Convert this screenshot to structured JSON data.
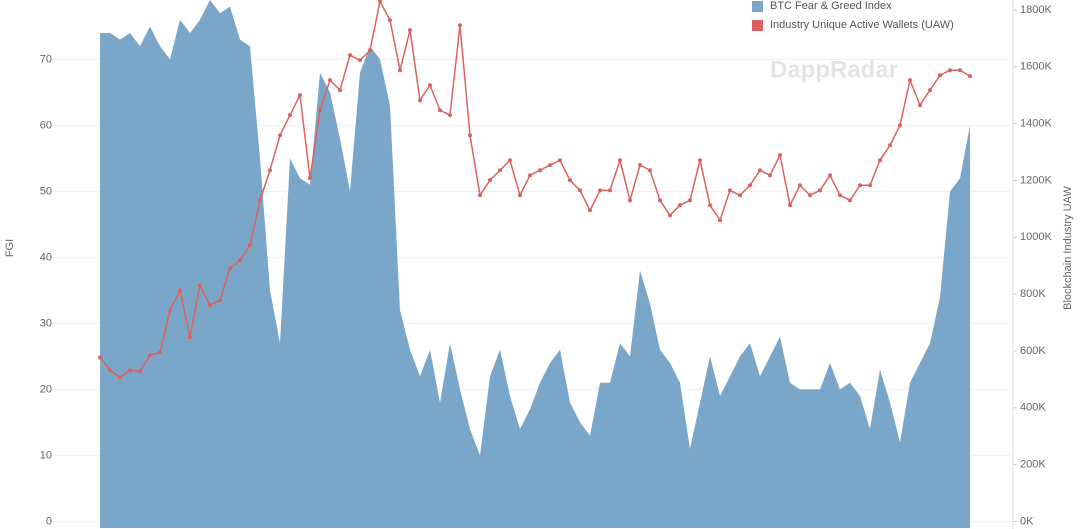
{
  "chart_data": {
    "type": "area-line",
    "watermark": "DappRadar",
    "y_label": "FGI",
    "y2_label": "Blockchain Industry UAW",
    "ylim": [
      -1,
      79
    ],
    "yticks": [
      0,
      10,
      20,
      30,
      40,
      50,
      60,
      70
    ],
    "y2lim": [
      -23000,
      1835000
    ],
    "y2ticks": [
      {
        "value": 0,
        "label": "0K"
      },
      {
        "value": 200000,
        "label": "200K"
      },
      {
        "value": 400000,
        "label": "400K"
      },
      {
        "value": 600000,
        "label": "600K"
      },
      {
        "value": 800000,
        "label": "800K"
      },
      {
        "value": 1000000,
        "label": "1000K"
      },
      {
        "value": 1200000,
        "label": "1200K"
      },
      {
        "value": 1400000,
        "label": "1400K"
      },
      {
        "value": 1600000,
        "label": "1600K"
      },
      {
        "value": 1800000,
        "label": "1800K"
      }
    ],
    "grid": true,
    "legend": "top-right",
    "series": [
      {
        "name": "BTC Fear & Greed Index",
        "color": "#7aa6c9",
        "kind": "area",
        "values": [
          74,
          74,
          73,
          74,
          72,
          75,
          72,
          70,
          76,
          74,
          76,
          79,
          77,
          78,
          73,
          72,
          55,
          35,
          27,
          55,
          52,
          51,
          68,
          65,
          58,
          50,
          68,
          72,
          70,
          63,
          32,
          26,
          22,
          26,
          18,
          27,
          20,
          14,
          10,
          22,
          26,
          19,
          14,
          17,
          21,
          24,
          26,
          18,
          15,
          13,
          21,
          21,
          27,
          25,
          38,
          33,
          26,
          24,
          21,
          11,
          18,
          25,
          19,
          22,
          25,
          27,
          22,
          25,
          28,
          21,
          20,
          20,
          20,
          24,
          20,
          21,
          19,
          14,
          23,
          18,
          12,
          21,
          24,
          27,
          34,
          50,
          52,
          60
        ]
      },
      {
        "name": "Industry Unique Active Wallets (UAW)",
        "color": "#d9645f",
        "kind": "line",
        "axis": "y2",
        "values": [
          577000,
          532000,
          507000,
          532000,
          528000,
          585000,
          595000,
          743000,
          813000,
          648000,
          831000,
          761000,
          778000,
          891000,
          919000,
          972000,
          1130000,
          1236000,
          1359000,
          1430000,
          1500000,
          1208000,
          1447000,
          1553000,
          1518000,
          1641000,
          1623000,
          1658000,
          1830000,
          1764000,
          1588000,
          1729000,
          1482000,
          1535000,
          1447000,
          1430000,
          1746000,
          1359000,
          1148000,
          1201000,
          1236000,
          1271000,
          1148000,
          1218000,
          1236000,
          1254000,
          1271000,
          1201000,
          1165000,
          1095000,
          1165000,
          1165000,
          1271000,
          1130000,
          1254000,
          1236000,
          1130000,
          1077000,
          1113000,
          1130000,
          1271000,
          1113000,
          1060000,
          1165000,
          1148000,
          1183000,
          1236000,
          1218000,
          1289000,
          1113000,
          1183000,
          1148000,
          1165000,
          1218000,
          1148000,
          1130000,
          1183000,
          1183000,
          1271000,
          1324000,
          1394000,
          1553000,
          1465000,
          1518000,
          1570000,
          1588000,
          1588000,
          1567000
        ]
      }
    ]
  }
}
